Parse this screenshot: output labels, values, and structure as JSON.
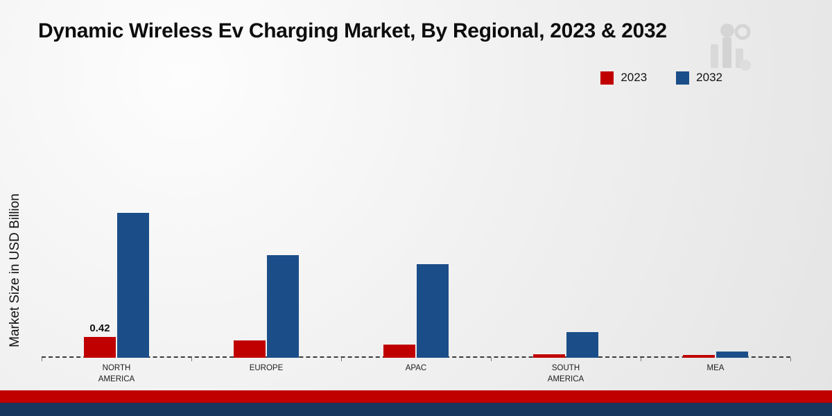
{
  "title": "Dynamic Wireless Ev Charging Market, By Regional, 2023 & 2032",
  "ylabel": "Market Size in USD Billion",
  "legend": [
    {
      "label": "2023",
      "color": "#c00000"
    },
    {
      "label": "2032",
      "color": "#1b4e89"
    }
  ],
  "chart_data": {
    "type": "bar",
    "title": "Dynamic Wireless Ev Charging Market, By Regional, 2023 & 2032",
    "ylabel": "Market Size in USD Billion",
    "units": "USD Billion",
    "categories": [
      "NORTH AMERICA",
      "EUROPE",
      "APAC",
      "SOUTH AMERICA",
      "MEA"
    ],
    "series": [
      {
        "name": "2023",
        "color": "#c00000",
        "values": [
          0.42,
          0.35,
          0.27,
          0.07,
          0.05
        ]
      },
      {
        "name": "2032",
        "color": "#1b4e89",
        "values": [
          2.9,
          2.05,
          1.87,
          0.52,
          0.12
        ]
      }
    ],
    "annotations": [
      {
        "series_index": 0,
        "category_index": 0,
        "text": "0.42"
      }
    ],
    "ylim": [
      0,
      3
    ],
    "baseline": "dashed",
    "grid": false,
    "legend_position": "top-right"
  },
  "footer": {
    "red_band_color": "#c00000",
    "blue_band_color": "#17375e"
  }
}
